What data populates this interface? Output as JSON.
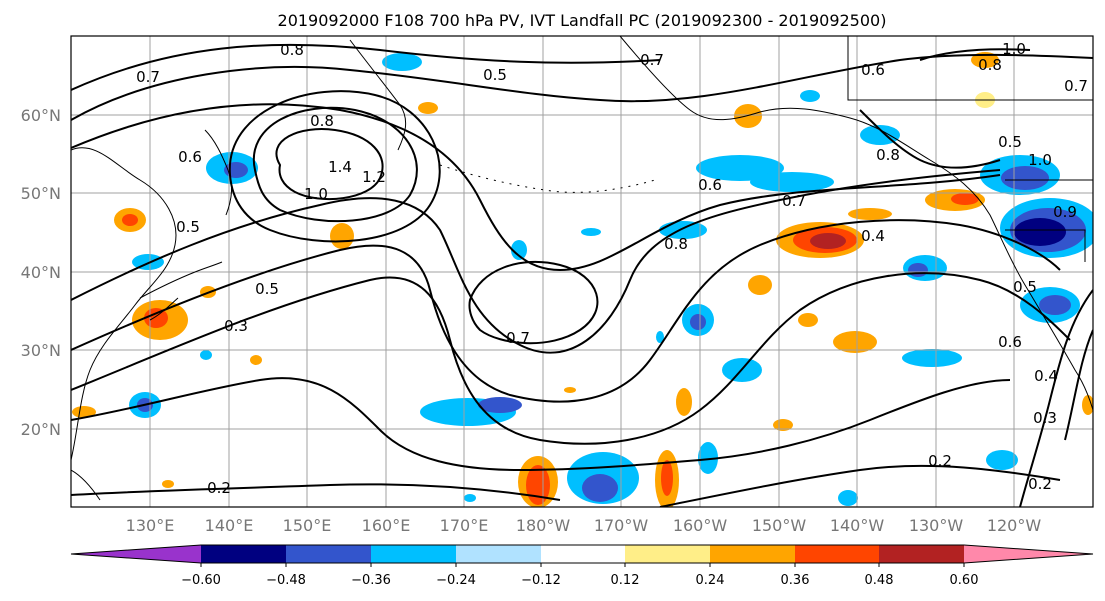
{
  "title": "2019092000 F108 700 hPa PV, IVT Landfall PC (2019092300 - 2019092500)",
  "axes": {
    "lat_labels": [
      "60°N",
      "50°N",
      "40°N",
      "30°N",
      "20°N"
    ],
    "lon_labels": [
      "130°E",
      "140°E",
      "150°E",
      "160°E",
      "170°E",
      "180°W",
      "170°W",
      "160°W",
      "150°W",
      "140°W",
      "130°W",
      "120°W"
    ]
  },
  "colorbar": {
    "tick_labels": [
      "−0.60",
      "−0.48",
      "−0.36",
      "−0.24",
      "−0.12",
      "0.12",
      "0.24",
      "0.36",
      "0.48",
      "0.60"
    ],
    "colors": [
      "#9933cc",
      "#000080",
      "#3355cc",
      "#00bfff",
      "#b0e2ff",
      "#ffffff",
      "#ffee88",
      "#ffa500",
      "#ff4500",
      "#b22222",
      "#ff88aa"
    ]
  },
  "contour_labels": [
    "0.8",
    "0.5",
    "0.7",
    "0.6",
    "1.0",
    "0.7",
    "0.8",
    "1.4",
    "1.2",
    "1.0",
    "0.6",
    "0.5",
    "0.8",
    "0.6",
    "0.7",
    "0.4",
    "0.8",
    "0.7",
    "0.5",
    "0.3",
    "0.2",
    "0.2",
    "0.2",
    "0.3",
    "0.4",
    "0.6",
    "0.5",
    "0.9",
    "0.5",
    "1.0",
    "0.8",
    "0.7"
  ]
}
